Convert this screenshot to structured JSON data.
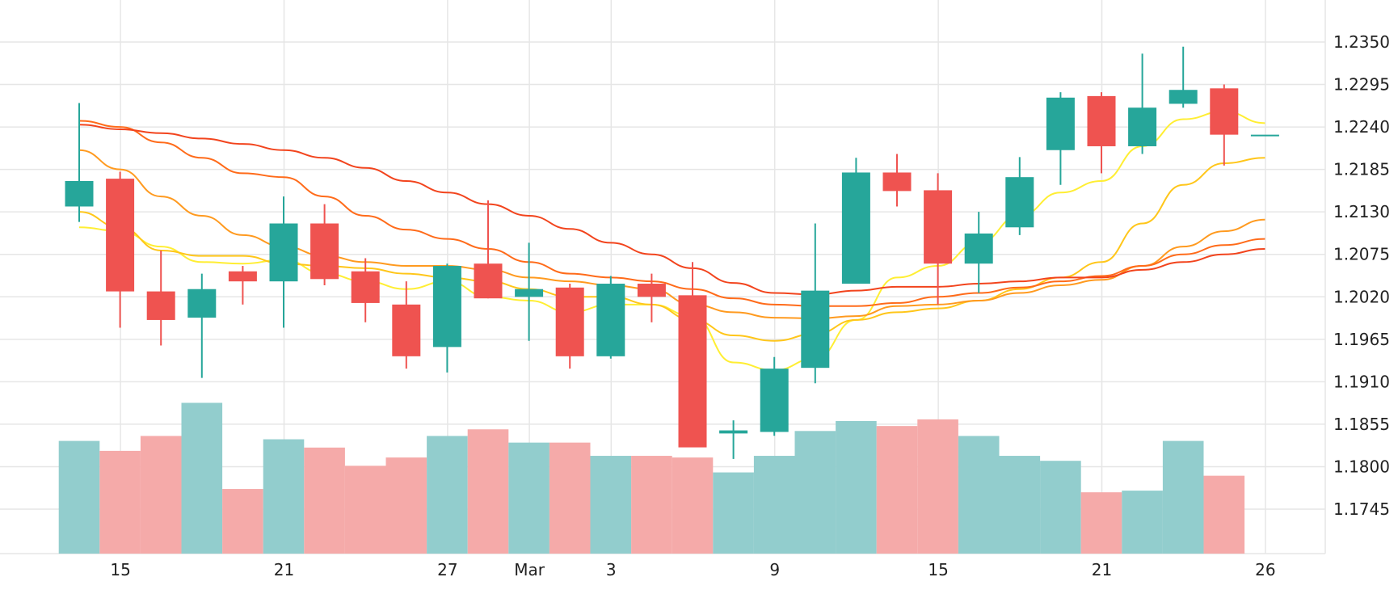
{
  "chart_data": {
    "type": "candlestick",
    "x_tick_labels": [
      "15",
      "21",
      "27",
      "Mar",
      "3",
      "9",
      "15",
      "21",
      "26"
    ],
    "y_tick_labels": [
      "1.2350",
      "1.2295",
      "1.2240",
      "1.2185",
      "1.2130",
      "1.2075",
      "1.2020",
      "1.1965",
      "1.1910",
      "1.1855",
      "1.1800",
      "1.1745"
    ],
    "yaxis": {
      "position": "right",
      "ticks": [
        1.235,
        1.2295,
        1.224,
        1.2185,
        1.213,
        1.2075,
        1.202,
        1.1965,
        1.191,
        1.1855,
        1.18,
        1.1745
      ]
    },
    "grid": true,
    "colors": {
      "up": "#26a69a",
      "down": "#ef5350",
      "volume_up": "#92cdcd",
      "volume_down": "#f5aaa9",
      "grid": "#e6e6e6",
      "ma": [
        "#ffee33",
        "#ffc61a",
        "#ff9a1f",
        "#ff6b1a",
        "#f2441d"
      ]
    },
    "candles": [
      {
        "open": 1.2137,
        "high": 1.2271,
        "low": 1.2117,
        "close": 1.217,
        "volume": 0.68
      },
      {
        "open": 1.2173,
        "high": 1.2182,
        "low": 1.198,
        "close": 1.2027,
        "volume": 0.62
      },
      {
        "open": 1.2027,
        "high": 1.208,
        "low": 1.1957,
        "close": 1.199,
        "volume": 0.71
      },
      {
        "open": 1.1993,
        "high": 1.205,
        "low": 1.1915,
        "close": 1.203,
        "volume": 0.91
      },
      {
        "open": 1.2053,
        "high": 1.206,
        "low": 1.201,
        "close": 1.204,
        "volume": 0.39
      },
      {
        "open": 1.204,
        "high": 1.215,
        "low": 1.198,
        "close": 1.2115,
        "volume": 0.69
      },
      {
        "open": 1.2115,
        "high": 1.214,
        "low": 1.2035,
        "close": 1.2043,
        "volume": 0.64
      },
      {
        "open": 1.2053,
        "high": 1.207,
        "low": 1.1987,
        "close": 1.2012,
        "volume": 0.53
      },
      {
        "open": 1.201,
        "high": 1.204,
        "low": 1.1927,
        "close": 1.1943,
        "volume": 0.58
      },
      {
        "open": 1.1955,
        "high": 1.2063,
        "low": 1.1922,
        "close": 1.206,
        "volume": 0.71
      },
      {
        "open": 1.2063,
        "high": 1.2145,
        "low": 1.2018,
        "close": 1.2018,
        "volume": 0.75
      },
      {
        "open": 1.202,
        "high": 1.209,
        "low": 1.1963,
        "close": 1.203,
        "volume": 0.67
      },
      {
        "open": 1.2032,
        "high": 1.2037,
        "low": 1.1927,
        "close": 1.1943,
        "volume": 0.67
      },
      {
        "open": 1.1943,
        "high": 1.2047,
        "low": 1.194,
        "close": 1.2037,
        "volume": 0.59
      },
      {
        "open": 1.2037,
        "high": 1.205,
        "low": 1.1987,
        "close": 1.202,
        "volume": 0.59
      },
      {
        "open": 1.2022,
        "high": 1.2065,
        "low": 1.183,
        "close": 1.1825,
        "volume": 0.58
      },
      {
        "open": 1.1843,
        "high": 1.186,
        "low": 1.181,
        "close": 1.1847,
        "volume": 0.49
      },
      {
        "open": 1.1845,
        "high": 1.1942,
        "low": 1.184,
        "close": 1.1927,
        "volume": 0.59
      },
      {
        "open": 1.1928,
        "high": 1.2115,
        "low": 1.1908,
        "close": 1.2028,
        "volume": 0.74
      },
      {
        "open": 1.2037,
        "high": 1.22,
        "low": 1.2037,
        "close": 1.2181,
        "volume": 0.8
      },
      {
        "open": 1.2181,
        "high": 1.2205,
        "low": 1.2137,
        "close": 1.2157,
        "volume": 0.77
      },
      {
        "open": 1.2158,
        "high": 1.218,
        "low": 1.201,
        "close": 1.2063,
        "volume": 0.81
      },
      {
        "open": 1.2063,
        "high": 1.213,
        "low": 1.2025,
        "close": 1.2102,
        "volume": 0.71
      },
      {
        "open": 1.211,
        "high": 1.2201,
        "low": 1.21,
        "close": 1.2175,
        "volume": 0.59
      },
      {
        "open": 1.221,
        "high": 1.2285,
        "low": 1.2165,
        "close": 1.2278,
        "volume": 0.56
      },
      {
        "open": 1.228,
        "high": 1.2285,
        "low": 1.218,
        "close": 1.2215,
        "volume": 0.37
      },
      {
        "open": 1.2215,
        "high": 1.2335,
        "low": 1.2205,
        "close": 1.2265,
        "volume": 0.38
      },
      {
        "open": 1.227,
        "high": 1.2344,
        "low": 1.2265,
        "close": 1.2288,
        "volume": 0.68
      },
      {
        "open": 1.229,
        "high": 1.2295,
        "low": 1.219,
        "close": 1.223,
        "volume": 0.47
      },
      {
        "open": 1.223,
        "high": 1.223,
        "low": 1.223,
        "close": 1.223,
        "volume": 0
      }
    ],
    "moving_averages": [
      {
        "values": [
          1.211,
          1.2105,
          1.2085,
          1.2065,
          1.2063,
          1.2068,
          1.205,
          1.204,
          1.203,
          1.204,
          1.202,
          1.2015,
          1.2,
          1.201,
          1.201,
          1.1995,
          1.1935,
          1.1925,
          1.194,
          1.199,
          1.2045,
          1.206,
          1.209,
          1.2125,
          1.2155,
          1.217,
          1.2215,
          1.225,
          1.226,
          1.2245
        ]
      },
      {
        "values": [
          1.213,
          1.211,
          1.208,
          1.2073,
          1.2073,
          1.2063,
          1.206,
          1.2057,
          1.205,
          1.2045,
          1.204,
          1.203,
          1.202,
          1.202,
          1.201,
          1.199,
          1.197,
          1.1963,
          1.1972,
          1.199,
          1.2,
          1.2005,
          1.2015,
          1.203,
          1.2045,
          1.2065,
          1.2115,
          1.2165,
          1.2193,
          1.22
        ]
      },
      {
        "values": [
          1.221,
          1.2185,
          1.215,
          1.2125,
          1.21,
          1.2085,
          1.2073,
          1.2065,
          1.206,
          1.206,
          1.2055,
          1.2045,
          1.204,
          1.2035,
          1.203,
          1.201,
          1.2,
          1.1993,
          1.1992,
          1.1995,
          1.2008,
          1.201,
          1.2015,
          1.2025,
          1.2035,
          1.2042,
          1.206,
          1.2085,
          1.2105,
          1.212
        ]
      },
      {
        "values": [
          1.2248,
          1.224,
          1.222,
          1.22,
          1.218,
          1.2175,
          1.215,
          1.2125,
          1.2107,
          1.2095,
          1.2082,
          1.2065,
          1.205,
          1.2045,
          1.204,
          1.203,
          1.2018,
          1.201,
          1.2008,
          1.2008,
          1.2012,
          1.202,
          1.2025,
          1.2032,
          1.204,
          1.2047,
          1.206,
          1.2075,
          1.2087,
          1.2095
        ]
      },
      {
        "values": [
          1.2243,
          1.2237,
          1.2232,
          1.2225,
          1.2218,
          1.221,
          1.22,
          1.2187,
          1.217,
          1.2155,
          1.214,
          1.2125,
          1.2108,
          1.209,
          1.2075,
          1.2057,
          1.2038,
          1.2025,
          1.2023,
          1.2028,
          1.2033,
          1.2033,
          1.2037,
          1.204,
          1.2045,
          1.2045,
          1.2055,
          1.2065,
          1.2075,
          1.2082
        ]
      }
    ]
  }
}
